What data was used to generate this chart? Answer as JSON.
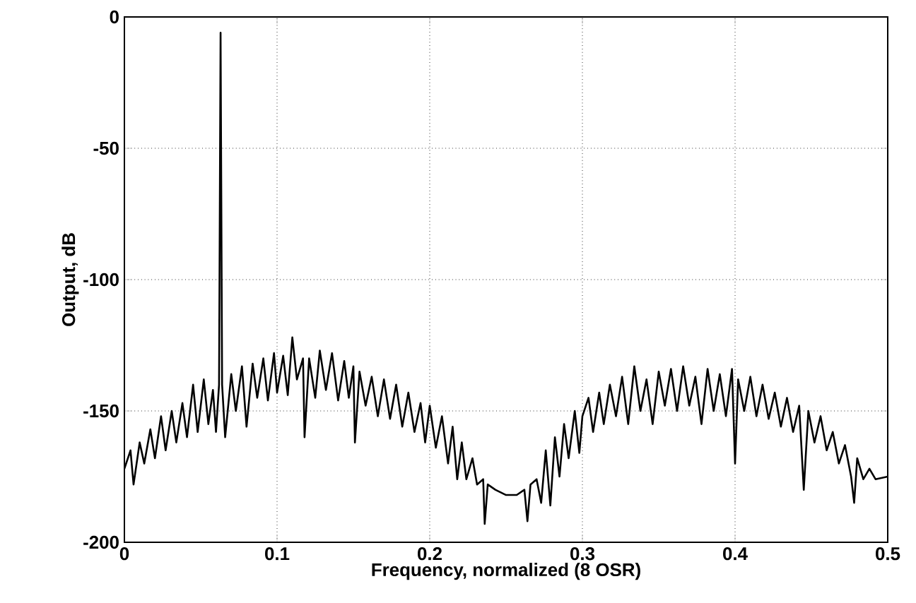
{
  "chart_data": {
    "type": "line",
    "xlabel": "Frequency, normalized (8 OSR)",
    "ylabel": "Output, dB",
    "xlim": [
      0,
      0.5
    ],
    "ylim": [
      -200,
      0
    ],
    "xticks": [
      0,
      0.1,
      0.2,
      0.3,
      0.4,
      0.5
    ],
    "yticks": [
      -200,
      -150,
      -100,
      -50,
      0
    ],
    "grid": true,
    "series": [
      {
        "color": "#000000",
        "x": [
          0,
          0.004,
          0.006,
          0.01,
          0.013,
          0.017,
          0.02,
          0.024,
          0.027,
          0.031,
          0.034,
          0.038,
          0.041,
          0.045,
          0.048,
          0.052,
          0.055,
          0.058,
          0.06,
          0.062,
          0.063,
          0.064,
          0.066,
          0.07,
          0.073,
          0.077,
          0.08,
          0.084,
          0.087,
          0.091,
          0.094,
          0.098,
          0.1,
          0.104,
          0.107,
          0.11,
          0.113,
          0.117,
          0.118,
          0.121,
          0.125,
          0.128,
          0.132,
          0.136,
          0.14,
          0.144,
          0.147,
          0.15,
          0.151,
          0.154,
          0.158,
          0.162,
          0.166,
          0.17,
          0.174,
          0.178,
          0.182,
          0.186,
          0.19,
          0.194,
          0.197,
          0.2,
          0.204,
          0.208,
          0.212,
          0.215,
          0.218,
          0.221,
          0.224,
          0.228,
          0.231,
          0.235,
          0.236,
          0.238,
          0.243,
          0.25,
          0.257,
          0.262,
          0.264,
          0.266,
          0.27,
          0.273,
          0.276,
          0.279,
          0.282,
          0.285,
          0.288,
          0.291,
          0.295,
          0.298,
          0.3,
          0.304,
          0.307,
          0.311,
          0.314,
          0.318,
          0.322,
          0.326,
          0.33,
          0.334,
          0.338,
          0.342,
          0.346,
          0.35,
          0.354,
          0.358,
          0.362,
          0.366,
          0.37,
          0.374,
          0.378,
          0.382,
          0.386,
          0.39,
          0.394,
          0.398,
          0.4,
          0.402,
          0.406,
          0.41,
          0.414,
          0.418,
          0.422,
          0.426,
          0.43,
          0.434,
          0.438,
          0.442,
          0.445,
          0.448,
          0.452,
          0.456,
          0.46,
          0.464,
          0.468,
          0.472,
          0.476,
          0.478,
          0.48,
          0.484,
          0.488,
          0.492,
          0.5
        ],
        "values": [
          -172,
          -165,
          -178,
          -162,
          -170,
          -157,
          -168,
          -152,
          -165,
          -150,
          -162,
          -147,
          -160,
          -140,
          -158,
          -138,
          -155,
          -142,
          -158,
          -140,
          -6,
          -140,
          -160,
          -136,
          -150,
          -133,
          -156,
          -132,
          -145,
          -130,
          -146,
          -128,
          -143,
          -129,
          -144,
          -122,
          -138,
          -130,
          -160,
          -130,
          -145,
          -127,
          -142,
          -128,
          -146,
          -131,
          -145,
          -133,
          -162,
          -135,
          -148,
          -137,
          -152,
          -138,
          -153,
          -140,
          -156,
          -143,
          -158,
          -147,
          -162,
          -148,
          -164,
          -152,
          -170,
          -156,
          -176,
          -162,
          -176,
          -168,
          -178,
          -176,
          -193,
          -178,
          -180,
          -182,
          -182,
          -180,
          -192,
          -178,
          -176,
          -185,
          -165,
          -186,
          -160,
          -175,
          -155,
          -168,
          -150,
          -166,
          -152,
          -145,
          -158,
          -143,
          -155,
          -140,
          -152,
          -137,
          -155,
          -133,
          -150,
          -138,
          -155,
          -135,
          -148,
          -134,
          -150,
          -133,
          -148,
          -137,
          -155,
          -134,
          -150,
          -136,
          -152,
          -134,
          -170,
          -138,
          -150,
          -137,
          -152,
          -140,
          -153,
          -143,
          -156,
          -145,
          -158,
          -148,
          -180,
          -150,
          -162,
          -152,
          -165,
          -158,
          -170,
          -163,
          -175,
          -185,
          -168,
          -176,
          -172,
          -176,
          -175
        ]
      }
    ]
  }
}
